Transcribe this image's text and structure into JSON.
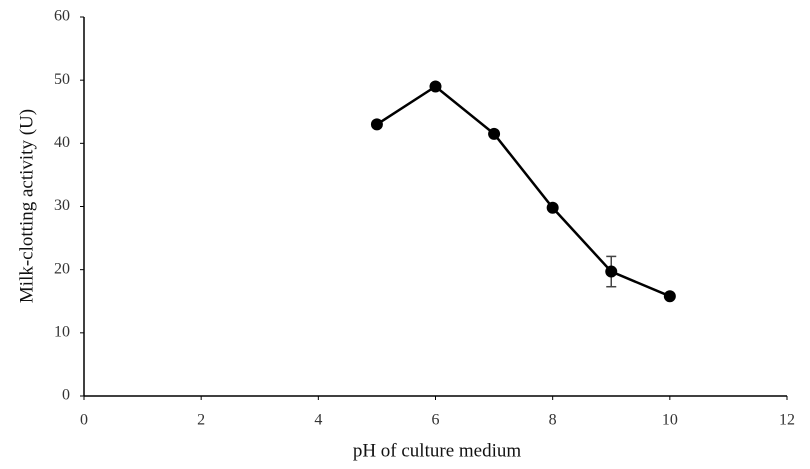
{
  "chart_data": {
    "type": "line",
    "x_label": "pH of culture medium",
    "y_label": "Milk-clotting activity  (U)",
    "x": [
      5,
      6,
      7,
      8,
      9,
      10
    ],
    "series": [
      {
        "color": "#000000",
        "values": [
          43,
          49,
          41.5,
          29.8,
          19.7,
          15.8
        ],
        "errors": [
          null,
          null,
          null,
          null,
          2.4,
          null
        ]
      }
    ],
    "xlim": [
      0,
      12
    ],
    "xticks": [
      0,
      2,
      4,
      6,
      8,
      10,
      12
    ],
    "ylim": [
      0,
      60
    ],
    "yticks": [
      0,
      10,
      20,
      30,
      40,
      50,
      60
    ],
    "grid": false
  }
}
